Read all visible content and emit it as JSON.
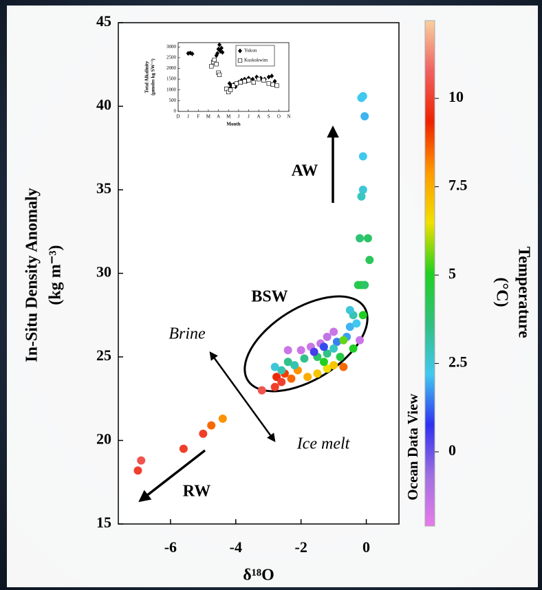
{
  "chart_data": [
    {
      "type": "scatter",
      "ylabel": [
        "In-Situ Density Anomaly",
        "(kg m⁻³)"
      ],
      "xlabel": "δ¹⁸O",
      "xlim": [
        -7.6,
        1.0
      ],
      "ylim": [
        15,
        45
      ],
      "xticks": [
        -6,
        -4,
        -2,
        0
      ],
      "yticks": [
        15,
        20,
        25,
        30,
        35,
        40,
        45
      ],
      "x": [
        -0.1,
        -0.15,
        -0.05,
        -0.1,
        -0.1,
        -0.15,
        -0.2,
        0.05,
        0.1,
        -0.25,
        -0.15,
        -0.05,
        -0.1,
        -0.2,
        -7.0,
        -6.9,
        -5.6,
        -5.0,
        -4.75,
        -4.4,
        -3.2,
        -2.8,
        -2.75,
        -2.6,
        -2.5,
        -2.3,
        -2.1,
        -1.8,
        -1.5,
        -1.2,
        -1.0,
        -0.7,
        -2.4,
        -2.2,
        -1.9,
        -1.5,
        -1.2,
        -0.8,
        -2.4,
        -2.0,
        -1.7,
        -1.4,
        -1.2,
        -1.0,
        -1.6,
        -1.3,
        -0.9,
        -0.6,
        -0.5,
        -0.4,
        -0.5,
        -0.3,
        -0.7,
        -0.4,
        -2.6,
        -2.8,
        -1.3,
        -1.0
      ],
      "values": [
        40.6,
        40.5,
        39.4,
        37.0,
        35.0,
        34.6,
        32.1,
        32.1,
        30.8,
        29.3,
        29.3,
        29.3,
        27.5,
        26.0,
        18.2,
        18.8,
        19.5,
        20.4,
        20.9,
        21.3,
        23.0,
        23.2,
        23.8,
        23.5,
        24.0,
        23.7,
        24.2,
        23.8,
        24.0,
        24.3,
        24.5,
        24.4,
        24.7,
        24.5,
        24.9,
        25.0,
        25.2,
        25.0,
        25.4,
        25.4,
        25.6,
        25.8,
        26.2,
        26.5,
        25.3,
        25.6,
        25.9,
        26.2,
        26.8,
        27.5,
        27.8,
        27.0,
        26.0,
        25.5,
        24.2,
        24.4,
        24.7,
        25.5
      ],
      "temperature": [
        2.2,
        2.2,
        2.0,
        2.2,
        2.5,
        2.8,
        3.8,
        4.0,
        4.2,
        4.3,
        4.5,
        4.0,
        5.0,
        -1.5,
        10,
        10.5,
        10,
        10,
        8.5,
        8,
        10.5,
        10,
        9.5,
        10,
        9,
        8.5,
        8,
        7.5,
        7,
        6.5,
        7,
        8.5,
        3.5,
        3,
        3.5,
        4,
        3.5,
        4.5,
        -1.5,
        -1.5,
        -1.5,
        -1.4,
        -1.3,
        -1.5,
        0.5,
        1,
        1.5,
        1.8,
        2,
        3,
        2.5,
        2.2,
        5.5,
        5,
        3,
        2.5,
        5,
        2.8
      ],
      "colorbar": {
        "label": [
          "Temperature",
          "(°C)"
        ],
        "lim": [
          -2.1,
          12.2
        ],
        "ticks": [
          0,
          2.5,
          5,
          7.5,
          10
        ],
        "colors": [
          "#e87bea",
          "#a070e0",
          "#3030f0",
          "#40c8f0",
          "#30c080",
          "#20d020",
          "#f0e000",
          "#ff9900",
          "#ee2200",
          "#f06060",
          "#f8d0a0"
        ]
      },
      "annotations": [
        "AW",
        "BSW",
        "Brine",
        "Ice melt",
        "RW"
      ],
      "watermark": "Ocean Data View"
    },
    {
      "type": "scatter",
      "ylabel": [
        "Total Alkalinity",
        "(µmoles kg SW⁻¹)"
      ],
      "xlabel": "Month",
      "xlim": [
        0,
        11
      ],
      "ylim": [
        0,
        3200
      ],
      "xticks": [
        {
          "value": 0,
          "label": "D"
        },
        {
          "value": 1,
          "label": "J"
        },
        {
          "value": 2,
          "label": "F"
        },
        {
          "value": 3,
          "label": "M"
        },
        {
          "value": 4,
          "label": "A"
        },
        {
          "value": 5,
          "label": "M"
        },
        {
          "value": 6,
          "label": "J"
        },
        {
          "value": 7,
          "label": "J"
        },
        {
          "value": 8,
          "label": "A"
        },
        {
          "value": 9,
          "label": "S"
        },
        {
          "value": 10,
          "label": "O"
        },
        {
          "value": 11,
          "label": "N"
        }
      ],
      "yticks": [
        0,
        500,
        1000,
        1500,
        2000,
        2500,
        3000
      ],
      "series": [
        {
          "name": "Yukon",
          "marker": "diamond",
          "color": "#000000",
          "x": [
            1.0,
            1.2,
            1.4,
            3.8,
            4.0,
            4.1,
            4.2,
            4.3,
            4.4,
            3.9,
            5.1,
            5.3,
            5.5,
            5.7,
            6.0,
            6.3,
            6.6,
            7.0,
            7.4,
            7.8,
            8.2,
            8.6,
            9.0,
            9.3,
            9.6,
            5.2,
            6.8
          ],
          "values": [
            2700,
            2720,
            2680,
            2600,
            2900,
            3100,
            2800,
            2950,
            2750,
            2700,
            1300,
            1200,
            1250,
            1150,
            1350,
            1450,
            1500,
            1550,
            1500,
            1600,
            1550,
            1500,
            1600,
            1650,
            1400,
            1100,
            1400
          ]
        },
        {
          "name": "Kuskokwim",
          "marker": "square",
          "color": "#000000",
          "x": [
            3.3,
            3.5,
            3.6,
            3.8,
            4.0,
            4.1,
            4.8,
            5.0,
            5.2,
            5.5,
            5.8,
            6.2,
            6.6,
            7.0,
            7.5,
            8.0,
            8.5,
            9.0,
            9.4,
            9.8
          ],
          "values": [
            2100,
            2300,
            2400,
            2200,
            1800,
            1700,
            1050,
            900,
            1000,
            1200,
            1300,
            1350,
            1400,
            1450,
            1350,
            1500,
            1450,
            1300,
            1250,
            1200
          ]
        }
      ]
    }
  ]
}
